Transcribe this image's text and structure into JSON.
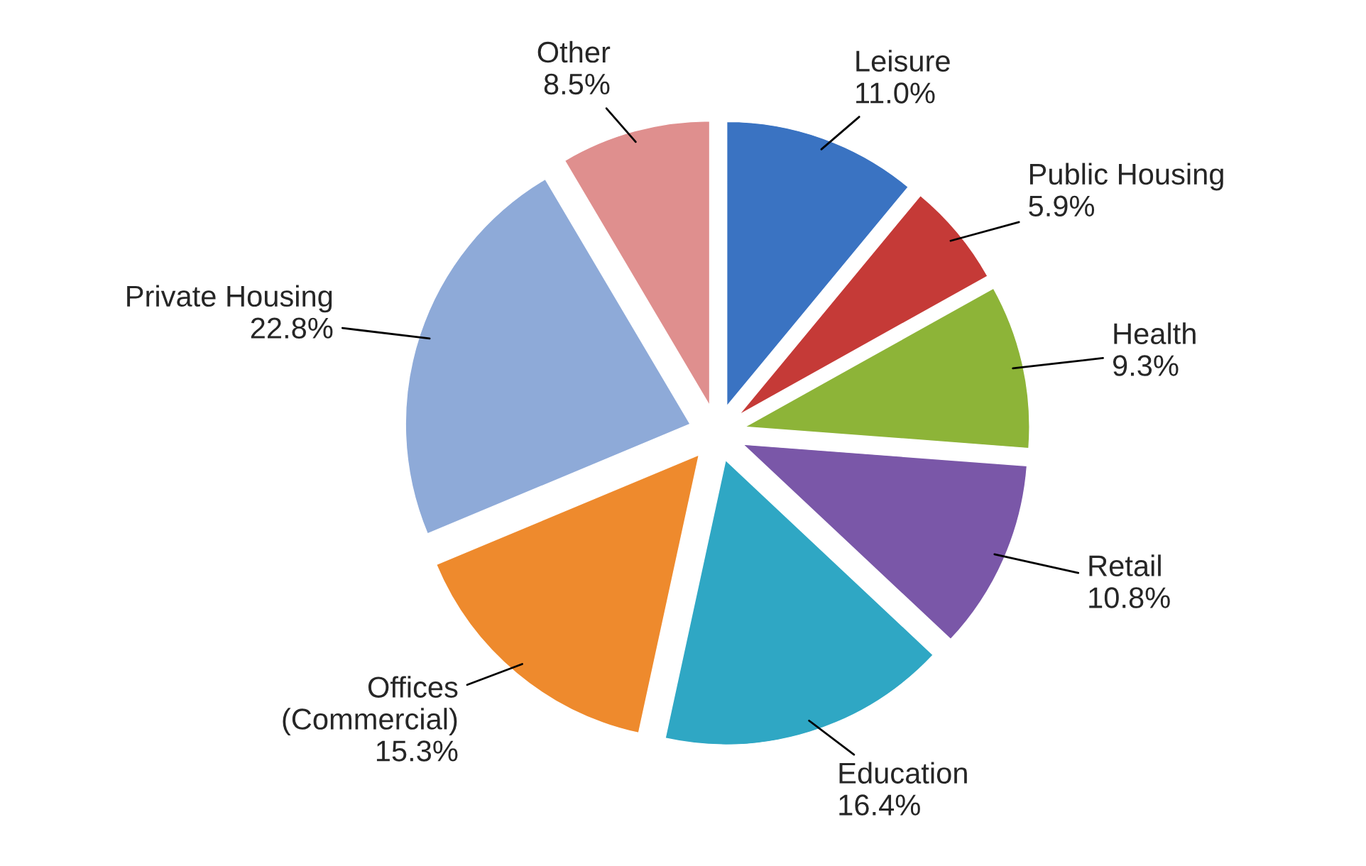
{
  "chart_data": {
    "type": "pie",
    "categories": [
      "Leisure",
      "Public Housing",
      "Health",
      "Retail",
      "Education",
      "Offices\n(Commercial)",
      "Private Housing",
      "Other"
    ],
    "values": [
      11.0,
      5.9,
      9.3,
      10.8,
      16.4,
      15.3,
      22.8,
      8.5
    ],
    "colors": [
      "#3a73c2",
      "#c53a37",
      "#8db438",
      "#7a57a8",
      "#2fa7c4",
      "#ee8a2d",
      "#8eaad8",
      "#df8f8e"
    ],
    "value_labels": [
      "11.0%",
      "5.9%",
      "9.3%",
      "10.8%",
      "16.4%",
      "15.3%",
      "22.8%",
      "8.5%"
    ],
    "legend": false
  }
}
